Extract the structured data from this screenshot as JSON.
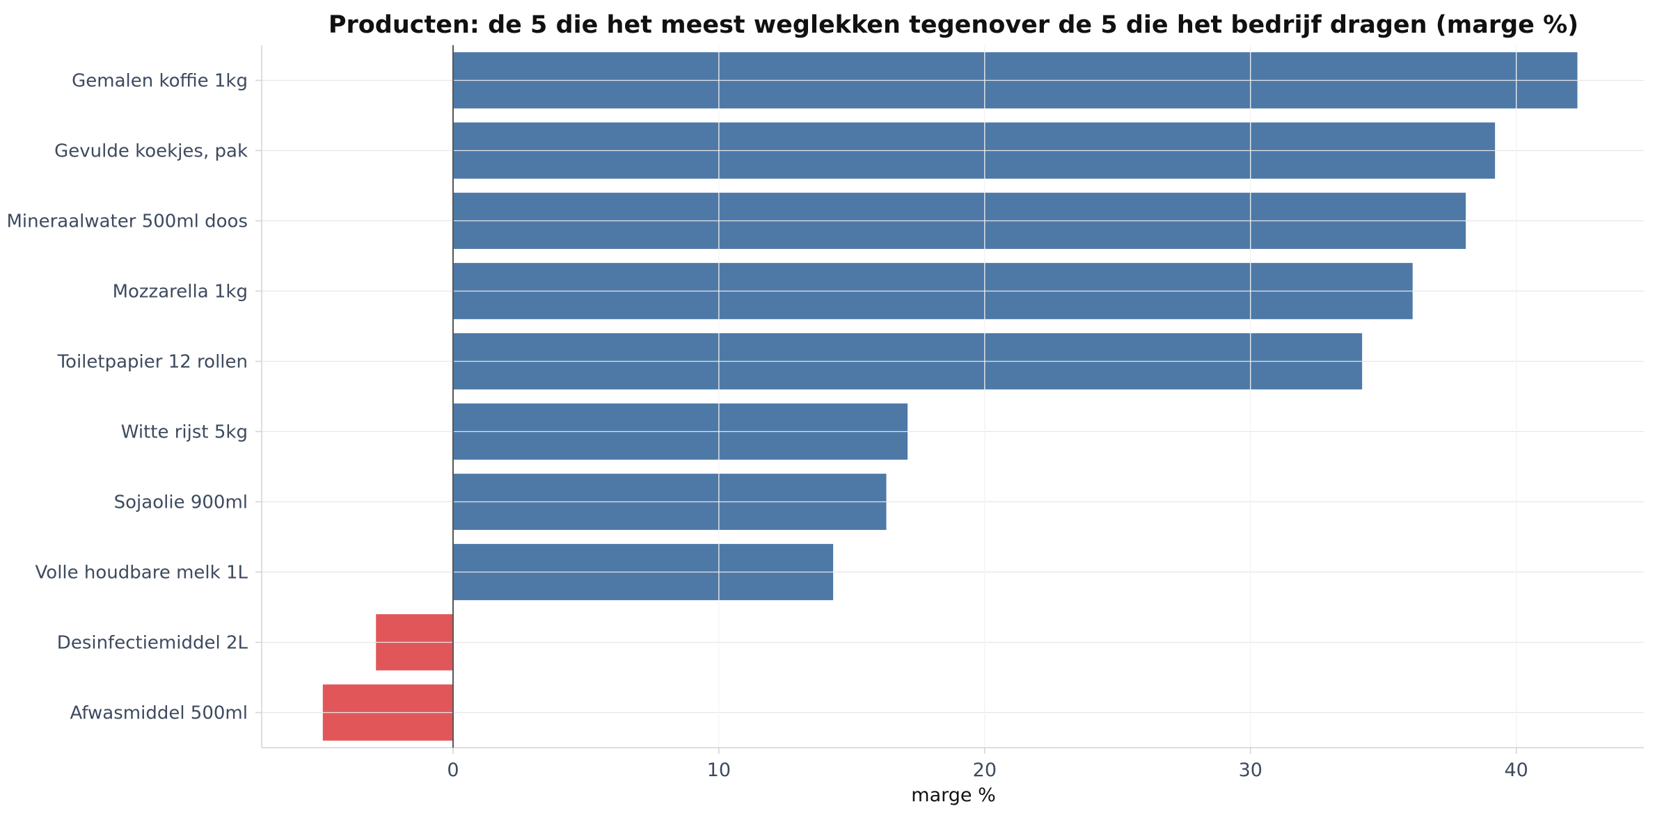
{
  "chart_data": {
    "type": "bar",
    "orientation": "horizontal",
    "title": "Producten: de 5 die het meest weglekken tegenover de 5 die het bedrijf dragen (marge %)",
    "xlabel": "marge %",
    "ylabel": "",
    "xlim": [
      -7.2,
      44.8
    ],
    "xticks": [
      0,
      10,
      20,
      30,
      40
    ],
    "grid": true,
    "categories": [
      "Gemalen koffie 1kg",
      "Gevulde koekjes, pak",
      "Mineraalwater 500ml doos",
      "Mozzarella 1kg",
      "Toiletpapier 12 rollen",
      "Witte rijst 5kg",
      "Sojaolie 900ml",
      "Volle houdbare melk 1L",
      "Desinfectiemiddel 2L",
      "Afwasmiddel 500ml"
    ],
    "values": [
      42.3,
      39.2,
      38.1,
      36.1,
      34.2,
      17.1,
      16.3,
      14.3,
      -2.9,
      -4.9
    ],
    "colors": {
      "positive": "#4e79a7",
      "negative": "#e15759"
    }
  }
}
